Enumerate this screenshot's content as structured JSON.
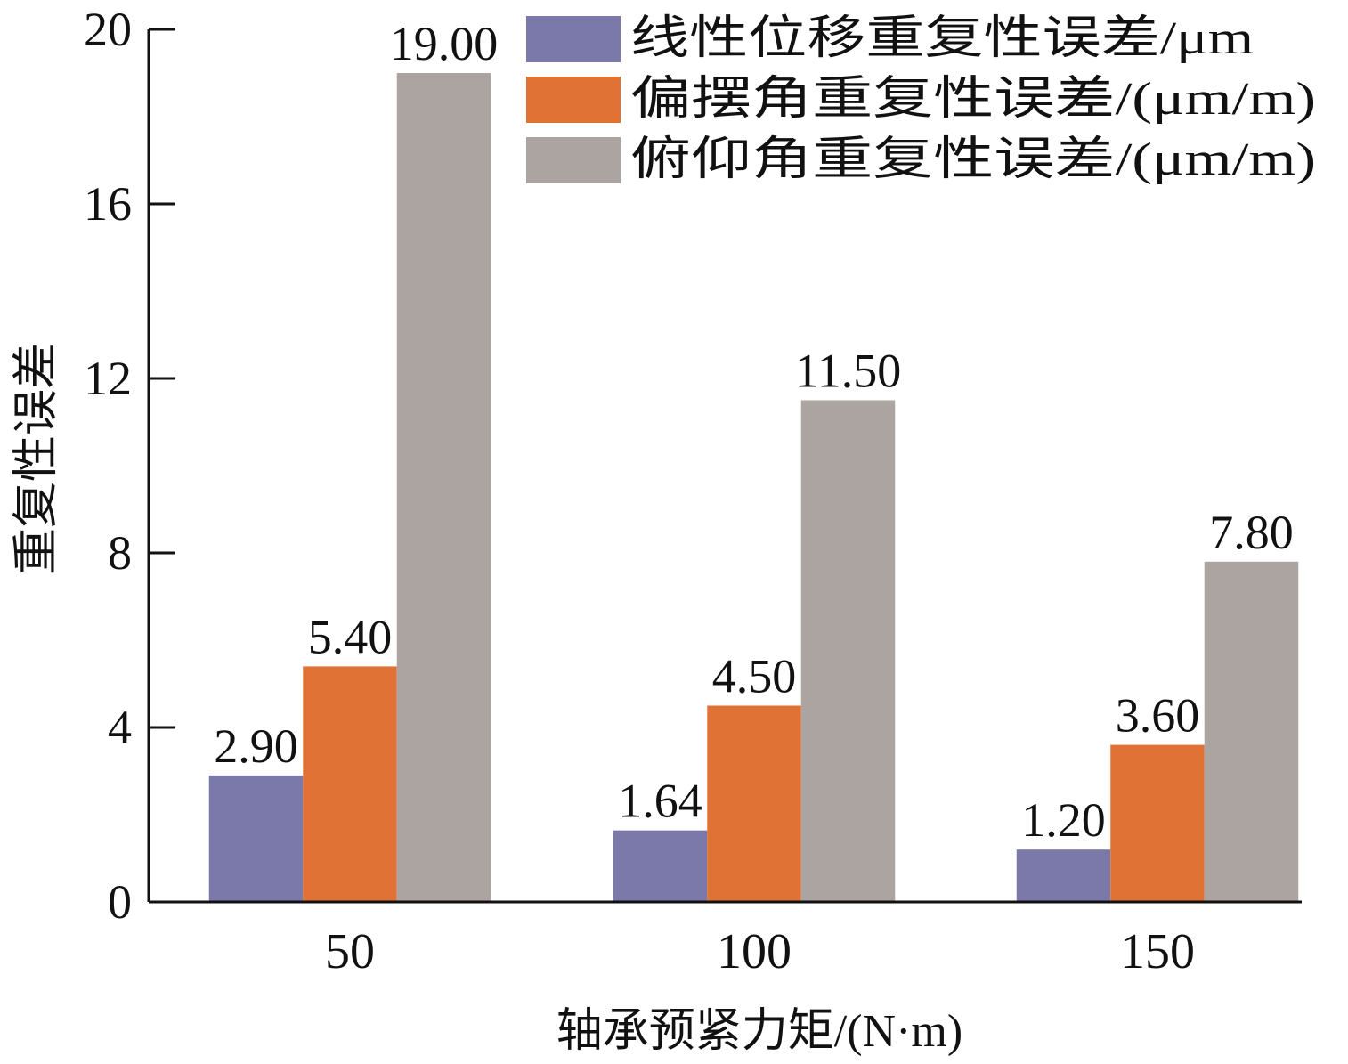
{
  "chart_data": {
    "type": "bar",
    "title": "",
    "xlabel": "轴承预紧力矩/(N·m)",
    "ylabel": "重复性误差",
    "categories": [
      "50",
      "100",
      "150"
    ],
    "ylim": [
      0,
      20
    ],
    "yticks": [
      "0",
      "4",
      "8",
      "12",
      "16",
      "20"
    ],
    "legend_position": "top-right",
    "series": [
      {
        "name": "线性位移重复性误差/μm",
        "color": "#7b78aa",
        "values": [
          2.9,
          1.64,
          1.2
        ],
        "labels": [
          "2.90",
          "1.64",
          "1.20"
        ]
      },
      {
        "name": "偏摆角重复性误差/(μm/m)",
        "color": "#e07235",
        "values": [
          5.4,
          4.5,
          3.6
        ],
        "labels": [
          "5.40",
          "4.50",
          "3.60"
        ]
      },
      {
        "name": "俯仰角重复性误差/(μm/m)",
        "color": "#aba4a0",
        "values": [
          19.0,
          11.5,
          7.8
        ],
        "labels": [
          "19.00",
          "11.50",
          "7.80"
        ]
      }
    ]
  }
}
